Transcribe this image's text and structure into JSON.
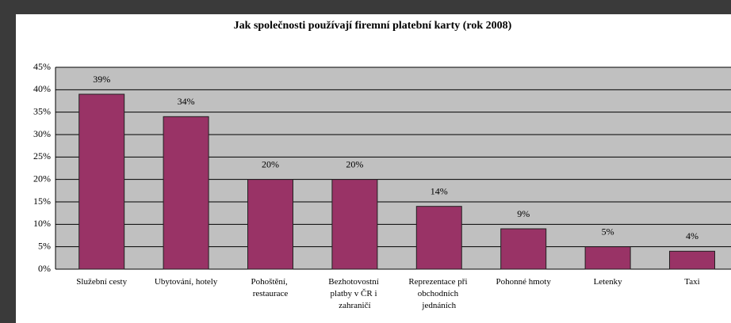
{
  "chart_data": {
    "type": "bar",
    "title": "Jak společnosti používají firemní platební karty (rok 2008)",
    "categories": [
      "Služební cesty",
      "Ubytování, hotely",
      "Pohoštění, restaurace",
      "Bezhotovostní platby v ČR i zahraničí",
      "Reprezentace při obchodních jednáních",
      "Pohonné hmoty",
      "Letenky",
      "Taxi"
    ],
    "values": [
      39,
      34,
      20,
      20,
      14,
      9,
      5,
      4
    ],
    "value_labels": [
      "39%",
      "34%",
      "20%",
      "20%",
      "14%",
      "9%",
      "5%",
      "4%"
    ],
    "color": "#993366",
    "ylim": [
      0,
      45
    ],
    "yticks": [
      {
        "value": 0,
        "label": "0%"
      },
      {
        "value": 5,
        "label": "5%"
      },
      {
        "value": 10,
        "label": "10%"
      },
      {
        "value": 15,
        "label": "15%"
      },
      {
        "value": 20,
        "label": "20%"
      },
      {
        "value": 25,
        "label": "25%"
      },
      {
        "value": 30,
        "label": "30%"
      },
      {
        "value": 35,
        "label": "35%"
      },
      {
        "value": 40,
        "label": "40%"
      },
      {
        "value": 45,
        "label": "45%"
      }
    ],
    "grid": true
  }
}
